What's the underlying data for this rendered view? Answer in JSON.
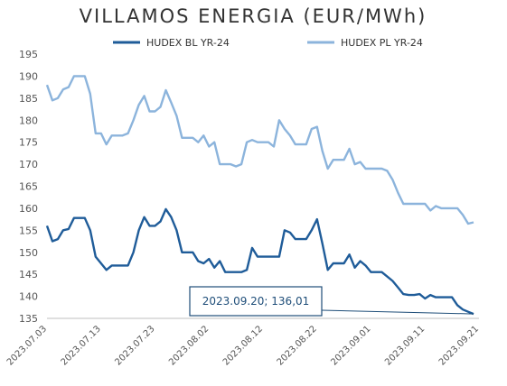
{
  "chart_data": {
    "type": "line",
    "title": "VILLAMOS ENERGIA (EUR/MWh)",
    "xlabel": "",
    "ylabel": "",
    "ylim": [
      135,
      195
    ],
    "yticks": [
      135,
      140,
      145,
      150,
      155,
      160,
      165,
      170,
      175,
      180,
      185,
      190,
      195
    ],
    "xtick_labels": [
      "2023.07.03",
      "2023.07.13",
      "2023.07.23",
      "2023.08.02",
      "2023.08.12",
      "2023.08.22",
      "2023.09.01",
      "2023.09.11",
      "2023.09.21"
    ],
    "grid": false,
    "legend_position": "top",
    "annotation": {
      "text": "2023.09.20; 136,01",
      "x": "2023.09.20",
      "y": 136.01
    },
    "series": [
      {
        "name": "HUDEX BL YR-24",
        "color": "#1f5c99",
        "points": [
          [
            "2023.07.03",
            156.0
          ],
          [
            "2023.07.04",
            152.5
          ],
          [
            "2023.07.05",
            153.0
          ],
          [
            "2023.07.06",
            155.0
          ],
          [
            "2023.07.07",
            155.3
          ],
          [
            "2023.07.08",
            157.8
          ],
          [
            "2023.07.09",
            157.8
          ],
          [
            "2023.07.10",
            157.8
          ],
          [
            "2023.07.11",
            155.0
          ],
          [
            "2023.07.12",
            149.0
          ],
          [
            "2023.07.13",
            147.5
          ],
          [
            "2023.07.14",
            146.0
          ],
          [
            "2023.07.15",
            147.0
          ],
          [
            "2023.07.16",
            147.0
          ],
          [
            "2023.07.17",
            147.0
          ],
          [
            "2023.07.18",
            147.0
          ],
          [
            "2023.07.19",
            150.0
          ],
          [
            "2023.07.20",
            155.0
          ],
          [
            "2023.07.21",
            158.0
          ],
          [
            "2023.07.22",
            156.0
          ],
          [
            "2023.07.23",
            156.0
          ],
          [
            "2023.07.24",
            157.0
          ],
          [
            "2023.07.25",
            159.8
          ],
          [
            "2023.07.26",
            158.0
          ],
          [
            "2023.07.27",
            155.0
          ],
          [
            "2023.07.28",
            150.0
          ],
          [
            "2023.07.29",
            150.0
          ],
          [
            "2023.07.30",
            150.0
          ],
          [
            "2023.07.31",
            148.0
          ],
          [
            "2023.08.01",
            147.5
          ],
          [
            "2023.08.02",
            148.5
          ],
          [
            "2023.08.03",
            146.5
          ],
          [
            "2023.08.04",
            148.0
          ],
          [
            "2023.08.05",
            145.5
          ],
          [
            "2023.08.06",
            145.5
          ],
          [
            "2023.08.07",
            145.5
          ],
          [
            "2023.08.08",
            145.5
          ],
          [
            "2023.08.09",
            146.0
          ],
          [
            "2023.08.10",
            151.0
          ],
          [
            "2023.08.11",
            149.0
          ],
          [
            "2023.08.12",
            149.0
          ],
          [
            "2023.08.13",
            149.0
          ],
          [
            "2023.08.14",
            149.0
          ],
          [
            "2023.08.15",
            149.0
          ],
          [
            "2023.08.16",
            155.0
          ],
          [
            "2023.08.17",
            154.5
          ],
          [
            "2023.08.18",
            153.0
          ],
          [
            "2023.08.19",
            153.0
          ],
          [
            "2023.08.20",
            153.0
          ],
          [
            "2023.08.21",
            155.0
          ],
          [
            "2023.08.22",
            157.5
          ],
          [
            "2023.08.23",
            152.0
          ],
          [
            "2023.08.24",
            146.0
          ],
          [
            "2023.08.25",
            147.5
          ],
          [
            "2023.08.26",
            147.5
          ],
          [
            "2023.08.27",
            147.5
          ],
          [
            "2023.08.28",
            149.5
          ],
          [
            "2023.08.29",
            146.5
          ],
          [
            "2023.08.30",
            148.0
          ],
          [
            "2023.08.31",
            147.0
          ],
          [
            "2023.09.01",
            145.5
          ],
          [
            "2023.09.02",
            145.5
          ],
          [
            "2023.09.03",
            145.5
          ],
          [
            "2023.09.04",
            144.5
          ],
          [
            "2023.09.05",
            143.5
          ],
          [
            "2023.09.06",
            142.0
          ],
          [
            "2023.09.07",
            140.5
          ],
          [
            "2023.09.08",
            140.3
          ],
          [
            "2023.09.09",
            140.3
          ],
          [
            "2023.09.10",
            140.5
          ],
          [
            "2023.09.11",
            139.5
          ],
          [
            "2023.09.12",
            140.3
          ],
          [
            "2023.09.13",
            139.8
          ],
          [
            "2023.09.14",
            139.8
          ],
          [
            "2023.09.15",
            139.8
          ],
          [
            "2023.09.16",
            139.8
          ],
          [
            "2023.09.17",
            138.0
          ],
          [
            "2023.09.18",
            137.0
          ],
          [
            "2023.09.19",
            136.5
          ],
          [
            "2023.09.20",
            136.01
          ]
        ]
      },
      {
        "name": "HUDEX PL YR-24",
        "color": "#8cb4dc",
        "points": [
          [
            "2023.07.03",
            188.0
          ],
          [
            "2023.07.04",
            184.5
          ],
          [
            "2023.07.05",
            185.0
          ],
          [
            "2023.07.06",
            187.0
          ],
          [
            "2023.07.07",
            187.5
          ],
          [
            "2023.07.08",
            190.0
          ],
          [
            "2023.07.09",
            190.0
          ],
          [
            "2023.07.10",
            190.0
          ],
          [
            "2023.07.11",
            186.0
          ],
          [
            "2023.07.12",
            177.0
          ],
          [
            "2023.07.13",
            177.0
          ],
          [
            "2023.07.14",
            174.5
          ],
          [
            "2023.07.15",
            176.5
          ],
          [
            "2023.07.16",
            176.5
          ],
          [
            "2023.07.17",
            176.5
          ],
          [
            "2023.07.18",
            177.0
          ],
          [
            "2023.07.19",
            180.0
          ],
          [
            "2023.07.20",
            183.5
          ],
          [
            "2023.07.21",
            185.5
          ],
          [
            "2023.07.22",
            182.0
          ],
          [
            "2023.07.23",
            182.0
          ],
          [
            "2023.07.24",
            183.0
          ],
          [
            "2023.07.25",
            186.8
          ],
          [
            "2023.07.26",
            184.0
          ],
          [
            "2023.07.27",
            181.0
          ],
          [
            "2023.07.28",
            176.0
          ],
          [
            "2023.07.29",
            176.0
          ],
          [
            "2023.07.30",
            176.0
          ],
          [
            "2023.07.31",
            175.0
          ],
          [
            "2023.08.01",
            176.5
          ],
          [
            "2023.08.02",
            174.0
          ],
          [
            "2023.08.03",
            175.0
          ],
          [
            "2023.08.04",
            170.0
          ],
          [
            "2023.08.05",
            170.0
          ],
          [
            "2023.08.06",
            170.0
          ],
          [
            "2023.08.07",
            169.5
          ],
          [
            "2023.08.08",
            170.0
          ],
          [
            "2023.08.09",
            175.0
          ],
          [
            "2023.08.10",
            175.5
          ],
          [
            "2023.08.11",
            175.0
          ],
          [
            "2023.08.12",
            175.0
          ],
          [
            "2023.08.13",
            175.0
          ],
          [
            "2023.08.14",
            174.0
          ],
          [
            "2023.08.15",
            180.0
          ],
          [
            "2023.08.16",
            178.0
          ],
          [
            "2023.08.17",
            176.5
          ],
          [
            "2023.08.18",
            174.5
          ],
          [
            "2023.08.19",
            174.5
          ],
          [
            "2023.08.20",
            174.5
          ],
          [
            "2023.08.21",
            178.0
          ],
          [
            "2023.08.22",
            178.5
          ],
          [
            "2023.08.23",
            173.0
          ],
          [
            "2023.08.24",
            169.0
          ],
          [
            "2023.08.25",
            171.0
          ],
          [
            "2023.08.26",
            171.0
          ],
          [
            "2023.08.27",
            171.0
          ],
          [
            "2023.08.28",
            173.5
          ],
          [
            "2023.08.29",
            170.0
          ],
          [
            "2023.08.30",
            170.5
          ],
          [
            "2023.08.31",
            169.0
          ],
          [
            "2023.09.01",
            169.0
          ],
          [
            "2023.09.02",
            169.0
          ],
          [
            "2023.09.03",
            169.0
          ],
          [
            "2023.09.04",
            168.5
          ],
          [
            "2023.09.05",
            166.5
          ],
          [
            "2023.09.06",
            163.5
          ],
          [
            "2023.09.07",
            161.0
          ],
          [
            "2023.09.08",
            161.0
          ],
          [
            "2023.09.09",
            161.0
          ],
          [
            "2023.09.10",
            161.0
          ],
          [
            "2023.09.11",
            161.0
          ],
          [
            "2023.09.12",
            159.5
          ],
          [
            "2023.09.13",
            160.5
          ],
          [
            "2023.09.14",
            160.0
          ],
          [
            "2023.09.15",
            160.0
          ],
          [
            "2023.09.16",
            160.0
          ],
          [
            "2023.09.17",
            160.0
          ],
          [
            "2023.09.18",
            158.5
          ],
          [
            "2023.09.19",
            156.5
          ],
          [
            "2023.09.20",
            156.8
          ]
        ]
      }
    ]
  }
}
